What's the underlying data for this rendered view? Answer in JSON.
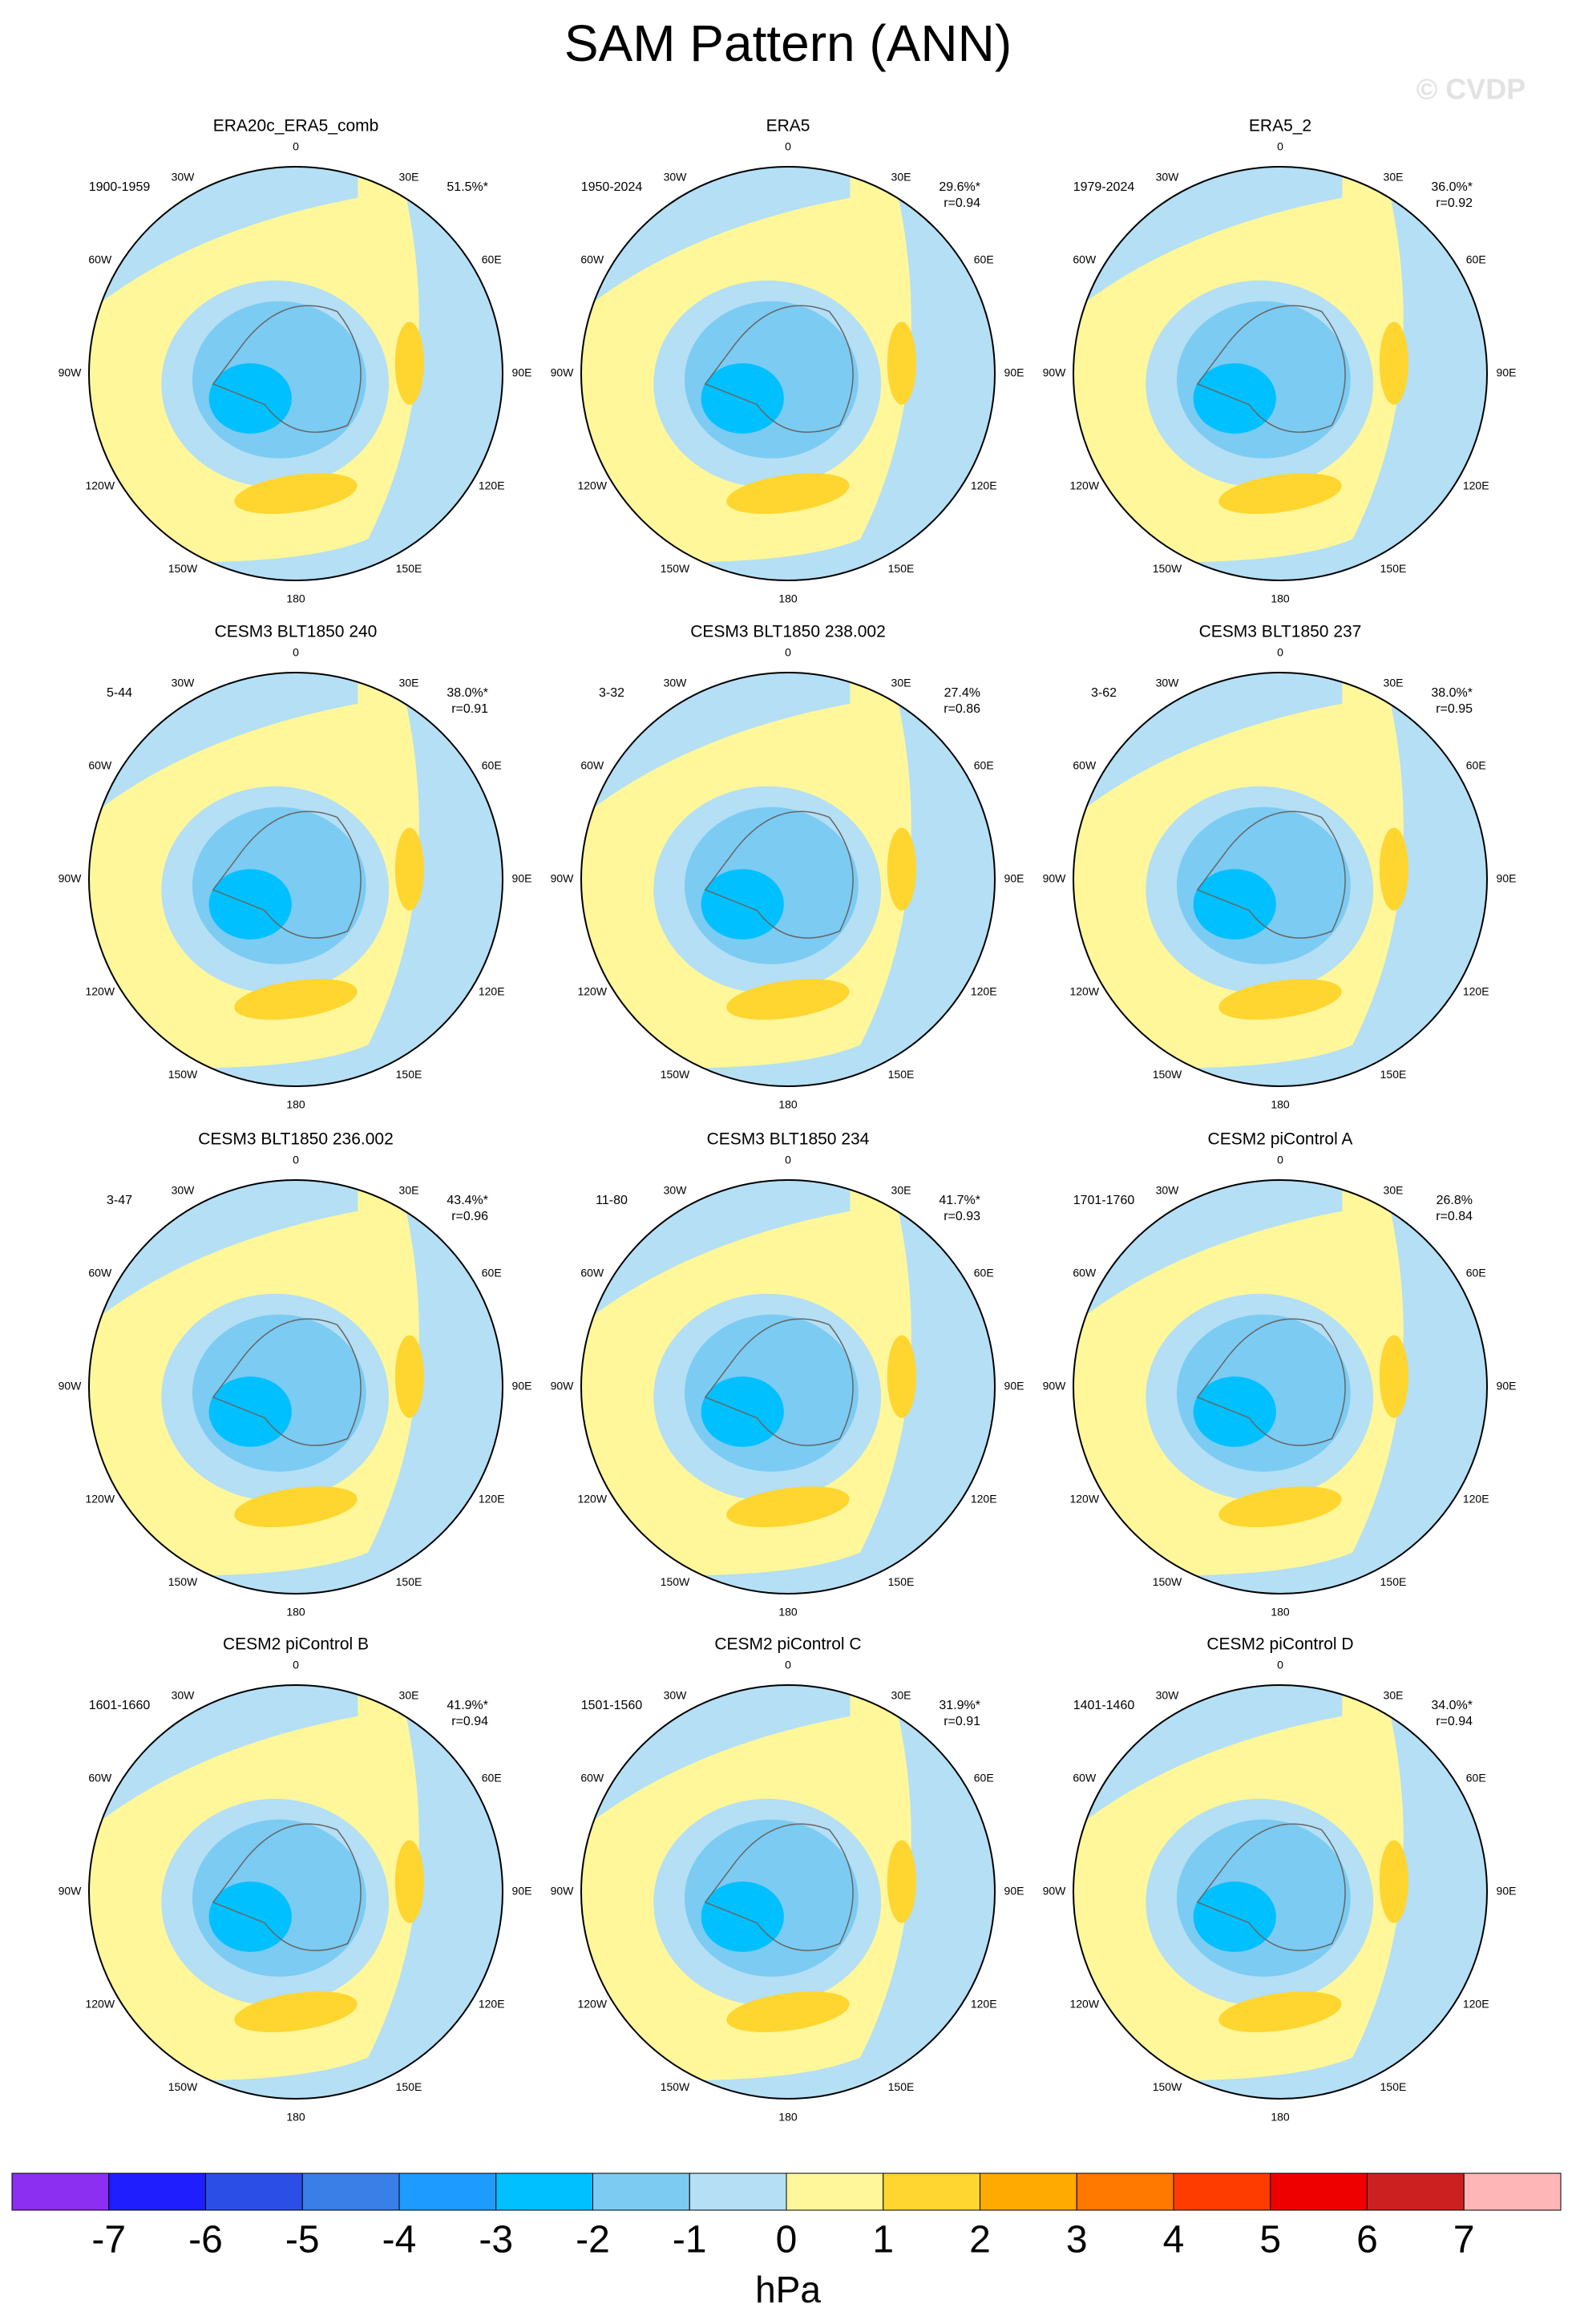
{
  "title": "SAM Pattern (ANN)",
  "watermark": "© CVDP",
  "lon_labels": [
    "0",
    "30E",
    "60E",
    "90E",
    "120E",
    "150E",
    "180",
    "150W",
    "120W",
    "90W",
    "60W",
    "30W"
  ],
  "panels": [
    {
      "title": "ERA20c_ERA5_comb",
      "period": "1900-1959",
      "pct": "51.5%*"
    },
    {
      "title": "ERA5",
      "period": "1950-2024",
      "pct": "29.6%*",
      "r": "r=0.94"
    },
    {
      "title": "ERA5_2",
      "period": "1979-2024",
      "pct": "36.0%*",
      "r": "r=0.92"
    },
    {
      "title": "CESM3 BLT1850 240",
      "period": "5-44",
      "pct": "38.0%*",
      "r": "r=0.91"
    },
    {
      "title": "CESM3 BLT1850 238.002",
      "period": "3-32",
      "pct": "27.4%",
      "r": "r=0.86"
    },
    {
      "title": "CESM3 BLT1850 237",
      "period": "3-62",
      "pct": "38.0%*",
      "r": "r=0.95"
    },
    {
      "title": "CESM3 BLT1850 236.002",
      "period": "3-47",
      "pct": "43.4%*",
      "r": "r=0.96"
    },
    {
      "title": "CESM3 BLT1850 234",
      "period": "11-80",
      "pct": "41.7%*",
      "r": "r=0.93"
    },
    {
      "title": "CESM2 piControl A",
      "period": "1701-1760",
      "pct": "26.8%",
      "r": "r=0.84"
    },
    {
      "title": "CESM2 piControl B",
      "period": "1601-1660",
      "pct": "41.9%*",
      "r": "r=0.94"
    },
    {
      "title": "CESM2 piControl C",
      "period": "1501-1560",
      "pct": "31.9%*",
      "r": "r=0.91"
    },
    {
      "title": "CESM2 piControl D",
      "period": "1401-1460",
      "pct": "34.0%*",
      "r": "r=0.94"
    }
  ],
  "colorbar": {
    "colors": [
      "#8c2ff0",
      "#1e1eff",
      "#2b4fe6",
      "#3a7ee8",
      "#1e9bff",
      "#00c0ff",
      "#7ccbf2",
      "#b4dff5",
      "#fff79a",
      "#ffd530",
      "#ffaa00",
      "#ff7800",
      "#ff3c00",
      "#ee0000",
      "#cc2020",
      "#ffb6b6"
    ],
    "ticks": [
      -7,
      -6,
      -5,
      -4,
      -3,
      -2,
      -1,
      0,
      1,
      2,
      3,
      4,
      5,
      6,
      7
    ],
    "label": "hPa"
  }
}
